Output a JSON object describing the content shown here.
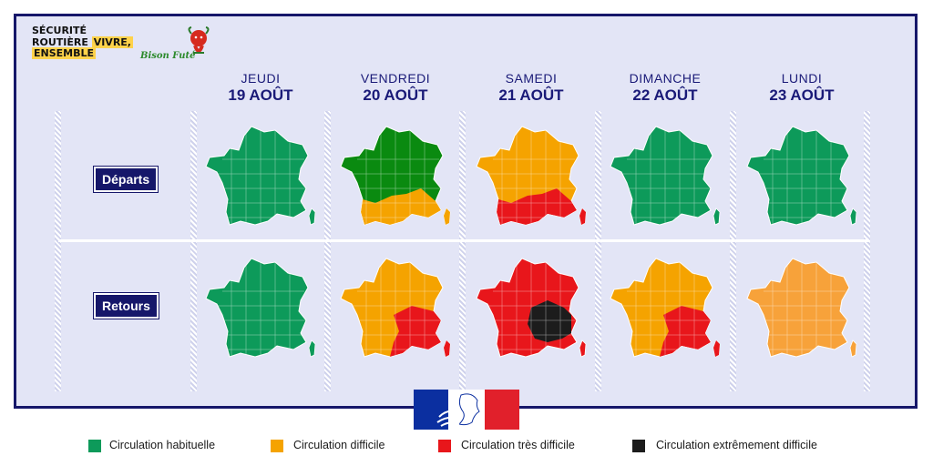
{
  "brand": {
    "line1": "SÉCURITÉ",
    "line2a": "ROUTIÈRE",
    "line2b": "VIVRE,",
    "line3": "ENSEMBLE",
    "bison": "Bison Futé"
  },
  "days": [
    {
      "name": "JEUDI",
      "date": "19 AOÛT"
    },
    {
      "name": "VENDREDI",
      "date": "20 AOÛT"
    },
    {
      "name": "SAMEDI",
      "date": "21 AOÛT"
    },
    {
      "name": "DIMANCHE",
      "date": "22 AOÛT"
    },
    {
      "name": "LUNDI",
      "date": "23 AOÛT"
    }
  ],
  "rows": {
    "departs": "Départs",
    "retours": "Retours"
  },
  "maps": {
    "departs": [
      {
        "base": "green"
      },
      {
        "base": "darkgreen",
        "overlay": "orange",
        "zone": "south"
      },
      {
        "base": "orange",
        "overlay": "red",
        "zone": "south"
      },
      {
        "base": "green"
      },
      {
        "base": "green"
      }
    ],
    "retours": [
      {
        "base": "green"
      },
      {
        "base": "orange",
        "overlay": "red",
        "zone": "southeast"
      },
      {
        "base": "red",
        "overlay": "black",
        "zone": "east"
      },
      {
        "base": "orange",
        "overlay": "red",
        "zone": "southeast"
      },
      {
        "base": "lightorange"
      }
    ]
  },
  "colors": {
    "green": "#0d9a5a",
    "darkgreen": "#0a8a10",
    "orange": "#f5a300",
    "lightorange": "#f7a23a",
    "red": "#e8161b",
    "black": "#1c1c1c",
    "navy": "#16176a",
    "flag_blue": "#0b2fa0",
    "flag_red": "#e1202b"
  },
  "legend": [
    {
      "label": "Circulation habituelle",
      "color": "#0d9a5a"
    },
    {
      "label": "Circulation difficile",
      "color": "#f5a300"
    },
    {
      "label": "Circulation très difficile",
      "color": "#e8161b"
    },
    {
      "label": "Circulation extrêmement difficile",
      "color": "#1c1c1c"
    }
  ]
}
